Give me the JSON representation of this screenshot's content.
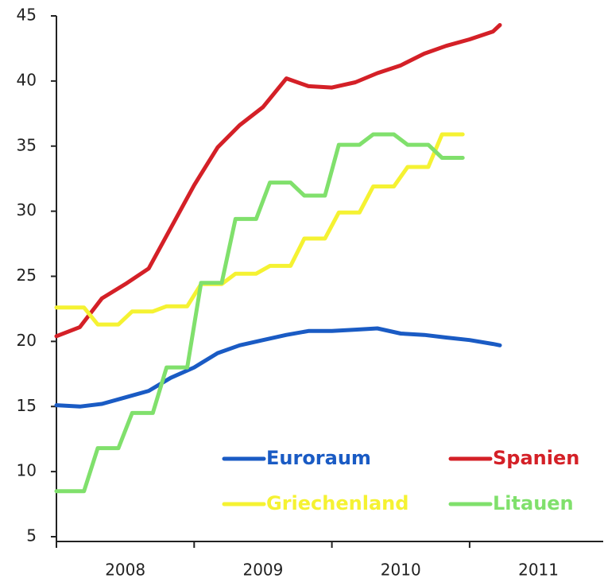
{
  "chart_data": {
    "type": "line",
    "xlim": [
      2008,
      2012
    ],
    "xticks": [
      2008,
      2009,
      2010,
      2011
    ],
    "ylim": [
      5,
      45
    ],
    "yticks": [
      5,
      10,
      15,
      20,
      25,
      30,
      35,
      40,
      45
    ],
    "series": [
      {
        "name": "Euroraum",
        "color": "#1a5bc4",
        "x": [
          2008,
          2008.17,
          2008.33,
          2008.5,
          2008.67,
          2008.83,
          2009,
          2009.17,
          2009.33,
          2009.5,
          2009.67,
          2009.83,
          2010,
          2010.17,
          2010.33,
          2010.5,
          2010.67,
          2010.83,
          2011,
          2011.17,
          2011.22
        ],
        "values": [
          15.1,
          15.0,
          15.2,
          15.7,
          16.2,
          17.2,
          18.0,
          19.1,
          19.7,
          20.1,
          20.5,
          20.8,
          20.8,
          20.9,
          21.0,
          20.6,
          20.5,
          20.3,
          20.1,
          19.8,
          19.7
        ]
      },
      {
        "name": "Spanien",
        "color": "#d42027",
        "x": [
          2008,
          2008.17,
          2008.33,
          2008.5,
          2008.67,
          2008.83,
          2009,
          2009.17,
          2009.33,
          2009.5,
          2009.67,
          2009.83,
          2010,
          2010.17,
          2010.33,
          2010.5,
          2010.67,
          2010.83,
          2011,
          2011.17,
          2011.22
        ],
        "values": [
          20.4,
          21.1,
          23.3,
          24.4,
          25.6,
          28.7,
          32.0,
          34.9,
          36.6,
          38.0,
          40.2,
          39.6,
          39.5,
          39.9,
          40.6,
          41.2,
          42.1,
          42.7,
          43.2,
          43.8,
          44.3
        ]
      },
      {
        "name": "Griechenland",
        "color": "#f5f232",
        "x": [
          2008,
          2008.2,
          2008.3,
          2008.45,
          2008.55,
          2008.7,
          2008.8,
          2008.95,
          2009.05,
          2009.2,
          2009.3,
          2009.45,
          2009.55,
          2009.7,
          2009.8,
          2009.95,
          2010.05,
          2010.2,
          2010.3,
          2010.45,
          2010.55,
          2010.7,
          2010.8,
          2010.95
        ],
        "values": [
          22.6,
          22.6,
          21.3,
          21.3,
          22.3,
          22.3,
          22.7,
          22.7,
          24.4,
          24.4,
          25.2,
          25.2,
          25.8,
          25.8,
          27.9,
          27.9,
          29.9,
          29.9,
          31.9,
          31.9,
          33.4,
          33.4,
          35.9,
          35.9
        ]
      },
      {
        "name": "Litauen",
        "color": "#80e06c",
        "x": [
          2008,
          2008.2,
          2008.3,
          2008.45,
          2008.55,
          2008.7,
          2008.8,
          2008.95,
          2009.05,
          2009.2,
          2009.3,
          2009.45,
          2009.55,
          2009.7,
          2009.8,
          2009.95,
          2010.05,
          2010.2,
          2010.3,
          2010.45,
          2010.55,
          2010.7,
          2010.8,
          2010.95
        ],
        "values": [
          8.5,
          8.5,
          11.8,
          11.8,
          14.5,
          14.5,
          18.0,
          18.0,
          24.5,
          24.5,
          29.4,
          29.4,
          32.2,
          32.2,
          31.2,
          31.2,
          35.1,
          35.1,
          35.9,
          35.9,
          35.1,
          35.1,
          34.1,
          34.1
        ]
      }
    ]
  }
}
